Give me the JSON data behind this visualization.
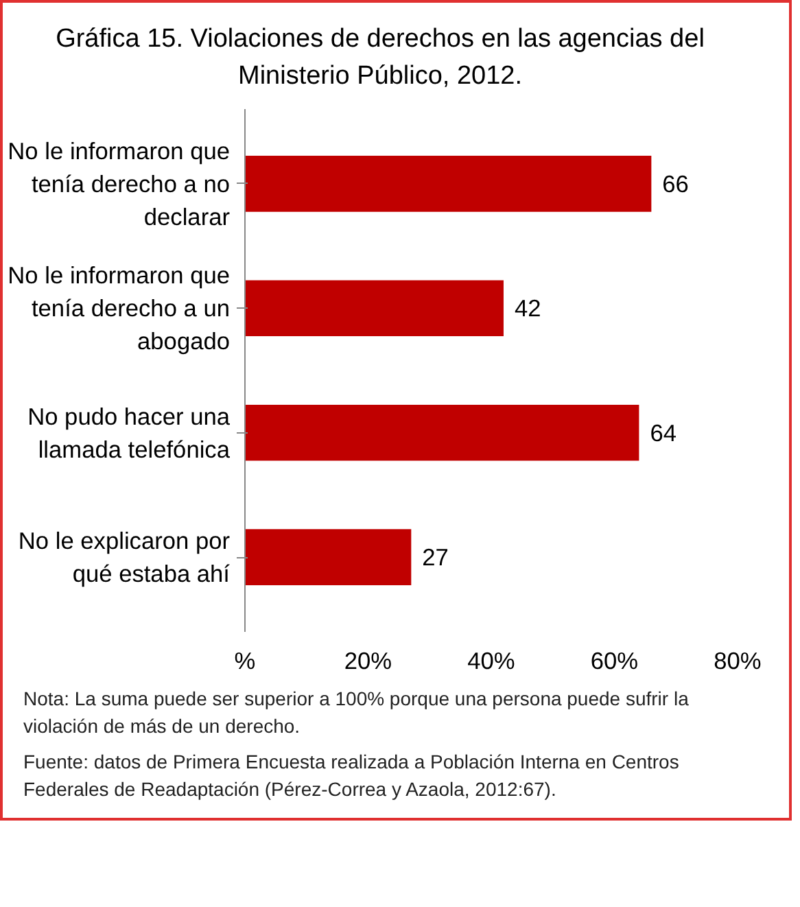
{
  "chart_data": {
    "type": "bar",
    "orientation": "horizontal",
    "title": "Gráfica 15. Violaciones de derechos en las agencias del Ministerio Público, 2012.",
    "categories": [
      "No le informaron que tenía derecho a no declarar",
      "No le informaron que tenía derecho a un abogado",
      "No pudo hacer una llamada telefónica",
      "No le explicaron por qué estaba ahí"
    ],
    "values": [
      66,
      42,
      64,
      27
    ],
    "color": "#c00000",
    "data_labels": true,
    "xlim": [
      0,
      80
    ],
    "xticks": [
      {
        "value": 0,
        "label": "%"
      },
      {
        "value": 20,
        "label": "20%"
      },
      {
        "value": 40,
        "label": "40%"
      },
      {
        "value": 60,
        "label": "60%"
      },
      {
        "value": 80,
        "label": "80%"
      }
    ],
    "annotations": [
      "Nota: La suma puede ser superior a 100% porque una persona puede sufrir la violación de más de un derecho.",
      "Fuente: datos de Primera Encuesta  realizada a Población Interna en Centros Federales de Readaptación (Pérez-Correa y Azaola, 2012:67)."
    ]
  }
}
